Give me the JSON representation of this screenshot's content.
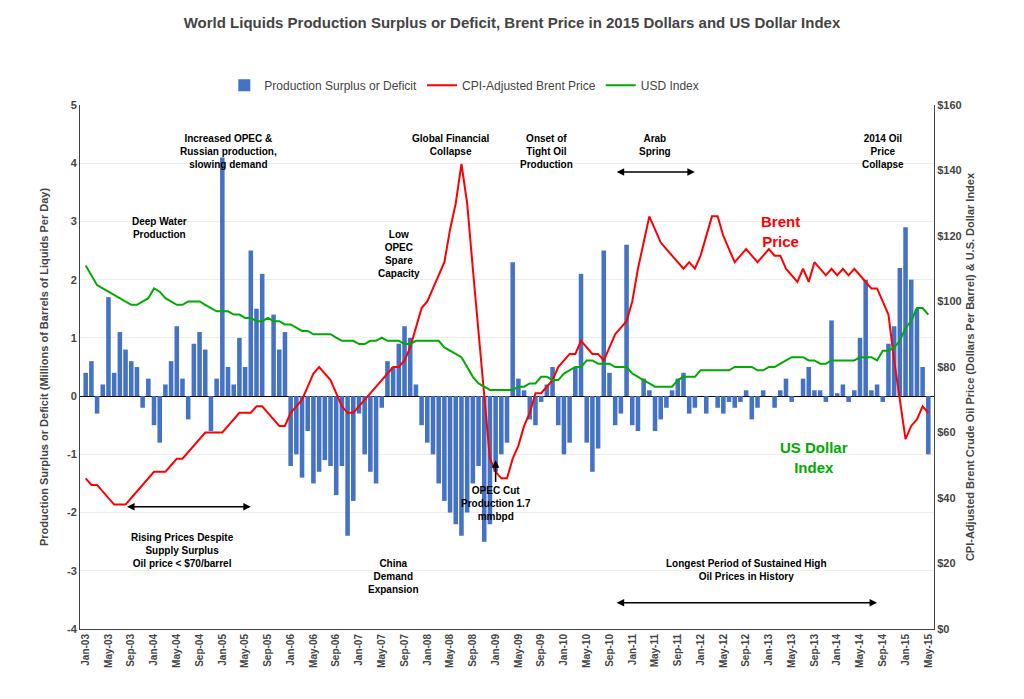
{
  "chart_data": {
    "type": "bar",
    "title": "World Liquids Production Surplus or Deficit, Brent Price in 2015 Dollars and US Dollar Index",
    "ylabel": "Production Surplus or Deficit (Millions of Barrels of Liquids Per Day)",
    "y2label": "CPI-Adjusted Brent Crude Oil Price (Dollars Per Barrel) & U.S. Dollar Index",
    "categories": [
      "Jan-03",
      null,
      null,
      null,
      "May-03",
      null,
      null,
      null,
      "Sep-03",
      null,
      null,
      null,
      "Jan-04",
      null,
      null,
      null,
      "May-04",
      null,
      null,
      null,
      "Sep-04",
      null,
      null,
      null,
      "Jan-05",
      null,
      null,
      null,
      "May-05",
      null,
      null,
      null,
      "Sep-05",
      null,
      null,
      null,
      "Jan-06",
      null,
      null,
      null,
      "May-06",
      null,
      null,
      null,
      "Sep-06",
      null,
      null,
      null,
      "Jan-07",
      null,
      null,
      null,
      "May-07",
      null,
      null,
      null,
      "Sep-07",
      null,
      null,
      null,
      "Jan-08",
      null,
      null,
      null,
      "May-08",
      null,
      null,
      null,
      "Sep-08",
      null,
      null,
      null,
      "Jan-09",
      null,
      null,
      null,
      "May-09",
      null,
      null,
      null,
      "Sep-09",
      null,
      null,
      null,
      "Jan-10",
      null,
      null,
      null,
      "May-10",
      null,
      null,
      null,
      "Sep-10",
      null,
      null,
      null,
      "Jan-11",
      null,
      null,
      null,
      "May-11",
      null,
      null,
      null,
      "Sep-11",
      null,
      null,
      null,
      "Jan-12",
      null,
      null,
      null,
      "May-12",
      null,
      null,
      null,
      "Sep-12",
      null,
      null,
      null,
      "Jan-13",
      null,
      null,
      null,
      "May-13",
      null,
      null,
      null,
      "Sep-13",
      null,
      null,
      null,
      "Jan-14",
      null,
      null,
      null,
      "May-14",
      null,
      null,
      null,
      "Sep-14",
      null,
      null,
      null,
      "Jan-15",
      null,
      null,
      null,
      "May-15"
    ],
    "series": [
      {
        "name": "Production Surplus or Deficit",
        "type": "bar",
        "color": "#4472C4",
        "values": [
          0.4,
          0.6,
          -0.3,
          0.2,
          1.7,
          0.4,
          1.1,
          0.8,
          0.6,
          0.5,
          -0.2,
          0.3,
          -0.5,
          -0.8,
          0.2,
          0.6,
          1.2,
          0.3,
          -0.4,
          0.9,
          1.1,
          0.8,
          -0.6,
          0.3,
          4.1,
          0.5,
          0.2,
          1.0,
          0.5,
          2.5,
          1.5,
          2.1,
          0.0,
          1.4,
          0.8,
          1.1,
          -1.2,
          -1.0,
          -1.4,
          -0.6,
          -1.5,
          -1.3,
          -1.1,
          -1.2,
          -1.7,
          -1.2,
          -2.4,
          -1.8,
          -0.3,
          -1.0,
          -1.3,
          -1.5,
          -0.2,
          0.6,
          0.5,
          0.9,
          1.2,
          1.0,
          0.2,
          -0.5,
          -0.8,
          -1.0,
          -1.5,
          -1.8,
          -2.0,
          -2.2,
          -2.4,
          -2.0,
          -1.5,
          -1.2,
          -2.5,
          -2.2,
          -1.3,
          -1.0,
          -0.8,
          2.3,
          0.3,
          0.1,
          -0.4,
          -0.5,
          -0.1,
          0.2,
          0.5,
          -0.5,
          -1.0,
          -0.8,
          0.5,
          2.1,
          -0.8,
          -1.3,
          -0.9,
          2.5,
          0.4,
          -0.5,
          -0.3,
          2.6,
          -0.5,
          -0.6,
          0.3,
          0.1,
          -0.6,
          -0.4,
          -0.2,
          0.1,
          0.3,
          0.4,
          -0.3,
          -0.2,
          0.0,
          -0.3,
          0.0,
          -0.2,
          -0.3,
          -0.1,
          -0.2,
          -0.1,
          0.1,
          -0.4,
          -0.2,
          0.1,
          0.0,
          -0.2,
          0.1,
          0.3,
          -0.1,
          0.0,
          0.3,
          0.5,
          0.1,
          0.1,
          -0.1,
          1.3,
          0.05,
          0.2,
          -0.1,
          0.1,
          1.0,
          2.0,
          0.1,
          0.2,
          -0.1,
          0.9,
          1.2,
          2.2,
          2.9,
          2.0,
          1.5,
          0.5,
          -1.0
        ]
      },
      {
        "name": "CPI-Adjusted Brent Price",
        "type": "line",
        "color": "#FF0000",
        "axis": "y2",
        "values": [
          46,
          44,
          44,
          42,
          40,
          38,
          38,
          38,
          40,
          42,
          44,
          46,
          48,
          48,
          48,
          50,
          52,
          52,
          54,
          56,
          58,
          60,
          60,
          60,
          60,
          62,
          64,
          66,
          66,
          66,
          68,
          68,
          66,
          64,
          62,
          62,
          66,
          68,
          70,
          74,
          78,
          80,
          78,
          76,
          72,
          68,
          66,
          66,
          68,
          70,
          72,
          74,
          76,
          78,
          80,
          80,
          82,
          86,
          92,
          98,
          100,
          104,
          108,
          112,
          122,
          130,
          142,
          130,
          110,
          90,
          70,
          52,
          48,
          46,
          46,
          52,
          56,
          62,
          66,
          72,
          72,
          74,
          76,
          80,
          82,
          84,
          84,
          88,
          86,
          84,
          84,
          82,
          86,
          90,
          92,
          94,
          100,
          110,
          118,
          126,
          122,
          118,
          116,
          114,
          112,
          110,
          112,
          110,
          114,
          120,
          126,
          126,
          120,
          116,
          112,
          114,
          116,
          114,
          112,
          114,
          116,
          114,
          114,
          110,
          108,
          106,
          110,
          106,
          112,
          110,
          108,
          110,
          108,
          110,
          108,
          110,
          108,
          106,
          104,
          104,
          100,
          96,
          82,
          70,
          58,
          62,
          64,
          68,
          66
        ]
      },
      {
        "name": "USD Index",
        "type": "line",
        "color": "#00AA00",
        "axis": "y2",
        "values": [
          111,
          108,
          105,
          104,
          103,
          102,
          101,
          100,
          99,
          99,
          100,
          101,
          104,
          103,
          101,
          100,
          99,
          99,
          100,
          100,
          100,
          99,
          98,
          97,
          97,
          97,
          96,
          96,
          95,
          95,
          94,
          94,
          95,
          94,
          94,
          93,
          93,
          92,
          91,
          91,
          90,
          90,
          90,
          90,
          89,
          88,
          88,
          88,
          87,
          87,
          88,
          88,
          89,
          88,
          88,
          88,
          87,
          87,
          88,
          88,
          88,
          88,
          88,
          86,
          85,
          84,
          83,
          80,
          77,
          75,
          74,
          73,
          73,
          73,
          73,
          73,
          74,
          74,
          75,
          75,
          77,
          77,
          76,
          76,
          78,
          79,
          80,
          80,
          82,
          82,
          81,
          81,
          81,
          80,
          80,
          80,
          78,
          77,
          76,
          75,
          74,
          74,
          74,
          74,
          76,
          77,
          77,
          77,
          79,
          79,
          79,
          79,
          79,
          79,
          80,
          80,
          80,
          80,
          79,
          79,
          80,
          80,
          81,
          82,
          83,
          83,
          83,
          82,
          82,
          81,
          81,
          82,
          82,
          82,
          82,
          82,
          83,
          83,
          83,
          82,
          85,
          85,
          86,
          88,
          92,
          94,
          98,
          98,
          96
        ]
      }
    ],
    "ylim": [
      -4,
      5
    ],
    "yticks": [
      -4,
      -3,
      -2,
      -1,
      0,
      1,
      2,
      3,
      4,
      5
    ],
    "y2lim": [
      0,
      160
    ],
    "y2ticks": [
      {
        "value": 0,
        "label": "$0"
      },
      {
        "value": 20,
        "label": "$20"
      },
      {
        "value": 40,
        "label": "$40"
      },
      {
        "value": 60,
        "label": "$60"
      },
      {
        "value": 80,
        "label": "$80"
      },
      {
        "value": 100,
        "label": "$100"
      },
      {
        "value": 120,
        "label": "$120"
      },
      {
        "value": 140,
        "label": "$140"
      },
      {
        "value": 160,
        "label": "$160"
      }
    ],
    "grid": true,
    "legend": "top",
    "annotations": [
      "Increased OPEC &\nRussian production,\nslowing demand",
      "Deep Water\nProduction",
      "Global Financial\nCollapse",
      "Low\nOPEC\nSpare\nCapacity",
      "Onset of\nTight Oil\nProduction",
      "Arab\nSpring",
      "2014 Oil\nPrice\nCollapse",
      "Brent\nPrice",
      "US Dollar\nIndex",
      "Rising Prices Despite\nSupply Surplus\nOil price < $70/barrel",
      "OPEC Cut\nProduction 1.7\nmmbpd",
      "China\nDemand\nExpansion",
      "Longest Period of Sustained High\nOil Prices in History"
    ]
  }
}
